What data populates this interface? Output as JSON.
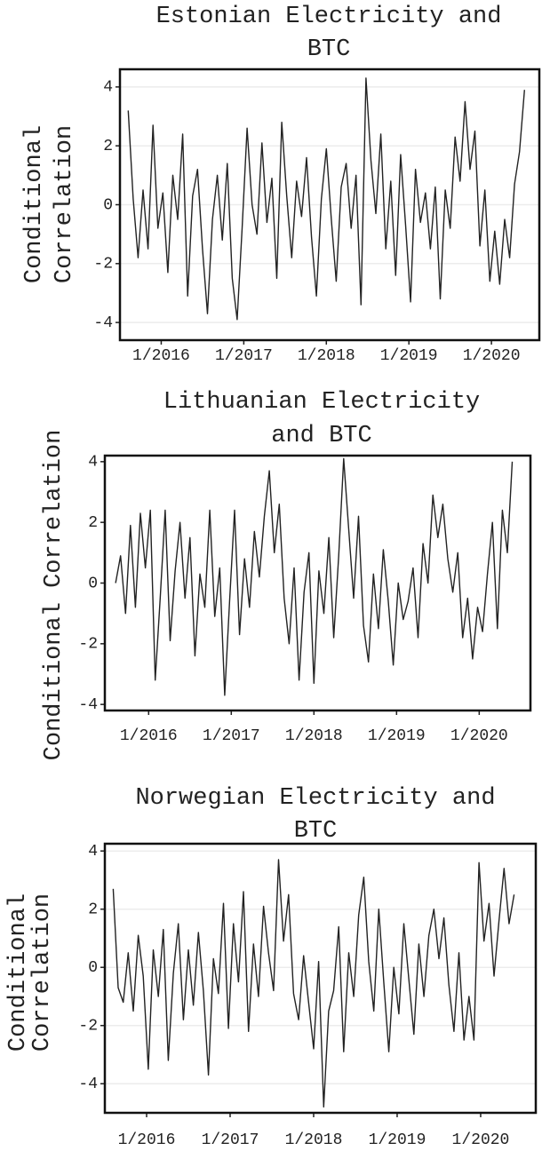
{
  "chart_data": [
    {
      "type": "line",
      "title": [
        "Estonian Electricity and",
        "BTC"
      ],
      "ylabel": [
        "Conditional",
        "Correlation"
      ],
      "color": "#222222",
      "grid": true,
      "xlim": [
        2015.5,
        2020.58
      ],
      "ylim": [
        -4.6,
        4.6
      ],
      "xticks": [
        {
          "value": 2016,
          "label": "1/2016"
        },
        {
          "value": 2017,
          "label": "1/2017"
        },
        {
          "value": 2018,
          "label": "1/2018"
        },
        {
          "value": 2019,
          "label": "1/2019"
        },
        {
          "value": 2020,
          "label": "1/2020"
        }
      ],
      "yticks": [
        4,
        2,
        0,
        -2,
        -4
      ],
      "x": [
        2015.6,
        2015.66,
        2015.72,
        2015.78,
        2015.84,
        2015.9,
        2015.96,
        2016.02,
        2016.08,
        2016.14,
        2016.2,
        2016.26,
        2016.32,
        2016.38,
        2016.44,
        2016.5,
        2016.56,
        2016.62,
        2016.68,
        2016.74,
        2016.8,
        2016.86,
        2016.92,
        2016.98,
        2017.04,
        2017.1,
        2017.16,
        2017.22,
        2017.28,
        2017.34,
        2017.4,
        2017.46,
        2017.52,
        2017.58,
        2017.64,
        2017.7,
        2017.76,
        2017.82,
        2017.88,
        2017.94,
        2018.0,
        2018.06,
        2018.12,
        2018.18,
        2018.24,
        2018.3,
        2018.36,
        2018.42,
        2018.48,
        2018.54,
        2018.6,
        2018.66,
        2018.72,
        2018.78,
        2018.84,
        2018.9,
        2018.96,
        2019.02,
        2019.08,
        2019.14,
        2019.2,
        2019.26,
        2019.32,
        2019.38,
        2019.44,
        2019.5,
        2019.56,
        2019.62,
        2019.68,
        2019.74,
        2019.8,
        2019.86,
        2019.92,
        2019.98,
        2020.04,
        2020.1,
        2020.16,
        2020.22,
        2020.28,
        2020.34,
        2020.4
      ],
      "values": [
        3.2,
        0.2,
        -1.8,
        0.5,
        -1.5,
        2.7,
        -0.8,
        0.4,
        -2.3,
        1.0,
        -0.5,
        2.4,
        -3.1,
        0.3,
        1.2,
        -1.5,
        -3.7,
        -0.5,
        1.0,
        -1.2,
        1.4,
        -2.5,
        -3.9,
        -0.8,
        2.6,
        0.0,
        -1.0,
        2.1,
        -0.6,
        0.9,
        -2.5,
        2.8,
        0.3,
        -1.8,
        0.8,
        -0.4,
        1.6,
        -1.1,
        -3.1,
        0.2,
        1.9,
        -0.5,
        -2.6,
        0.6,
        1.4,
        -0.8,
        1.0,
        -3.4,
        4.3,
        1.5,
        -0.3,
        2.4,
        -1.5,
        0.8,
        -2.4,
        1.7,
        -0.7,
        -3.3,
        1.2,
        -0.6,
        0.4,
        -1.5,
        0.6,
        -3.2,
        0.5,
        -0.8,
        2.3,
        0.8,
        3.5,
        1.2,
        2.5,
        -1.4,
        0.5,
        -2.6,
        -0.9,
        -2.7,
        -0.5,
        -1.8,
        0.7,
        1.8,
        3.9
      ]
    },
    {
      "type": "line",
      "title": [
        "Lithuanian Electricity",
        "and BTC"
      ],
      "ylabel": [
        "Conditional Correlation"
      ],
      "color": "#222222",
      "grid": false,
      "xlim": [
        2015.47,
        2020.62
      ],
      "ylim": [
        -4.2,
        4.2
      ],
      "xticks": [
        {
          "value": 2016,
          "label": "1/2016"
        },
        {
          "value": 2017,
          "label": "1/2017"
        },
        {
          "value": 2018,
          "label": "1/2018"
        },
        {
          "value": 2019,
          "label": "1/2019"
        },
        {
          "value": 2020,
          "label": "1/2020"
        }
      ],
      "yticks": [
        4,
        2,
        0,
        -2,
        -4
      ],
      "x": [
        2015.6,
        2015.66,
        2015.72,
        2015.78,
        2015.84,
        2015.9,
        2015.96,
        2016.02,
        2016.08,
        2016.14,
        2016.2,
        2016.26,
        2016.32,
        2016.38,
        2016.44,
        2016.5,
        2016.56,
        2016.62,
        2016.68,
        2016.74,
        2016.8,
        2016.86,
        2016.92,
        2016.98,
        2017.04,
        2017.1,
        2017.16,
        2017.22,
        2017.28,
        2017.34,
        2017.4,
        2017.46,
        2017.52,
        2017.58,
        2017.64,
        2017.7,
        2017.76,
        2017.82,
        2017.88,
        2017.94,
        2018.0,
        2018.06,
        2018.12,
        2018.18,
        2018.24,
        2018.3,
        2018.36,
        2018.42,
        2018.48,
        2018.54,
        2018.6,
        2018.66,
        2018.72,
        2018.78,
        2018.84,
        2018.9,
        2018.96,
        2019.02,
        2019.08,
        2019.14,
        2019.2,
        2019.26,
        2019.32,
        2019.38,
        2019.44,
        2019.5,
        2019.56,
        2019.62,
        2019.68,
        2019.74,
        2019.8,
        2019.86,
        2019.92,
        2019.98,
        2020.04,
        2020.1,
        2020.16,
        2020.22,
        2020.28,
        2020.34,
        2020.4
      ],
      "values": [
        0.0,
        0.9,
        -1.0,
        1.9,
        -0.8,
        2.3,
        0.5,
        2.4,
        -3.2,
        -0.5,
        2.4,
        -1.9,
        0.4,
        2.0,
        -0.5,
        1.5,
        -2.4,
        0.3,
        -0.8,
        2.4,
        -1.1,
        0.5,
        -3.7,
        -0.6,
        2.4,
        -1.7,
        0.8,
        -0.8,
        1.7,
        0.2,
        2.2,
        3.7,
        1.0,
        2.6,
        -0.5,
        -2.0,
        0.5,
        -3.2,
        -0.3,
        1.0,
        -3.3,
        0.4,
        -1.0,
        1.5,
        -1.8,
        0.9,
        4.1,
        1.8,
        -0.5,
        2.2,
        -1.4,
        -2.6,
        0.3,
        -1.5,
        1.1,
        -0.6,
        -2.7,
        0.0,
        -1.2,
        -0.6,
        0.5,
        -1.8,
        1.3,
        0.0,
        2.9,
        1.5,
        2.6,
        0.8,
        -0.3,
        1.0,
        -1.8,
        -0.5,
        -2.5,
        -0.8,
        -1.6,
        0.3,
        2.0,
        -1.5,
        2.4,
        1.0,
        4.0
      ]
    },
    {
      "type": "line",
      "title": [
        "Norwegian Electricity and",
        "BTC"
      ],
      "ylabel": [
        "Conditional",
        "Correlation"
      ],
      "color": "#222222",
      "grid": true,
      "xlim": [
        2015.5,
        2020.66
      ],
      "ylim": [
        -5,
        4.25
      ],
      "xticks": [
        {
          "value": 2016,
          "label": "1/2016"
        },
        {
          "value": 2017,
          "label": "1/2017"
        },
        {
          "value": 2018,
          "label": "1/2018"
        },
        {
          "value": 2019,
          "label": "1/2019"
        },
        {
          "value": 2020,
          "label": "1/2020"
        }
      ],
      "yticks": [
        4,
        2,
        0,
        -2,
        -4
      ],
      "x": [
        2015.6,
        2015.66,
        2015.72,
        2015.78,
        2015.84,
        2015.9,
        2015.96,
        2016.02,
        2016.08,
        2016.14,
        2016.2,
        2016.26,
        2016.32,
        2016.38,
        2016.44,
        2016.5,
        2016.56,
        2016.62,
        2016.68,
        2016.74,
        2016.8,
        2016.86,
        2016.92,
        2016.98,
        2017.04,
        2017.1,
        2017.16,
        2017.22,
        2017.28,
        2017.34,
        2017.4,
        2017.46,
        2017.52,
        2017.58,
        2017.64,
        2017.7,
        2017.76,
        2017.82,
        2017.88,
        2017.94,
        2018.0,
        2018.06,
        2018.12,
        2018.18,
        2018.24,
        2018.3,
        2018.36,
        2018.42,
        2018.48,
        2018.54,
        2018.6,
        2018.66,
        2018.72,
        2018.78,
        2018.84,
        2018.9,
        2018.96,
        2019.02,
        2019.08,
        2019.14,
        2019.2,
        2019.26,
        2019.32,
        2019.38,
        2019.44,
        2019.5,
        2019.56,
        2019.62,
        2019.68,
        2019.74,
        2019.8,
        2019.86,
        2019.92,
        2019.98,
        2020.04,
        2020.1,
        2020.16,
        2020.22,
        2020.28,
        2020.34,
        2020.4
      ],
      "values": [
        2.7,
        -0.7,
        -1.2,
        0.5,
        -1.5,
        1.1,
        -0.3,
        -3.5,
        0.6,
        -1.0,
        1.3,
        -3.2,
        -0.2,
        1.5,
        -1.8,
        0.6,
        -1.3,
        1.2,
        -0.8,
        -3.7,
        0.3,
        -0.9,
        2.2,
        -2.1,
        1.5,
        -0.5,
        2.6,
        -2.2,
        0.8,
        -1.0,
        2.1,
        0.5,
        -0.8,
        3.7,
        0.9,
        2.5,
        -0.9,
        -1.8,
        0.4,
        -1.2,
        -2.8,
        0.2,
        -4.8,
        -1.5,
        -0.8,
        1.4,
        -2.9,
        0.5,
        -1.0,
        1.8,
        3.1,
        0.2,
        -1.5,
        2.0,
        -0.5,
        -2.9,
        0.0,
        -1.6,
        1.5,
        -0.4,
        -2.3,
        0.8,
        -1.0,
        1.1,
        2.0,
        0.3,
        1.7,
        -0.6,
        -2.2,
        0.5,
        -2.5,
        -1.0,
        -2.5,
        3.6,
        0.9,
        2.2,
        -0.3,
        1.6,
        3.4,
        1.5,
        2.5
      ]
    }
  ]
}
